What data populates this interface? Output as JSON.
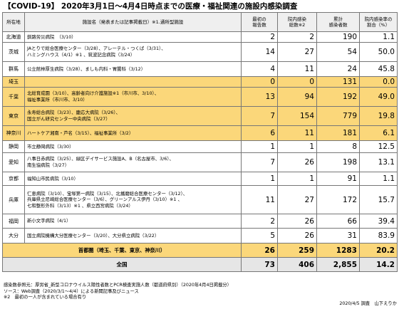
{
  "title": "【COVID-19】 2020年3月1日～4月4日時点までの医療・福祉関連の施設内感染調査",
  "headers": {
    "pref": "所在地",
    "facility": "施設名（発表または記事掲載日）※1.通所型施設",
    "first": "最初の\n報告数",
    "total": "院内感染\n総数※2",
    "cases": "累計\n感染者数",
    "ratio": "院内感染率の\n割合（%）"
  },
  "rows": [
    {
      "pref": "北海道",
      "lines": [
        "釧路労災病院　（3/10）"
      ],
      "first": "2",
      "total": "2",
      "cases": "190",
      "ratio": "1.1",
      "hl": false
    },
    {
      "pref": "茨城",
      "lines": [
        "JAとりで総合医療センター（3/28）、アレーテル・つくば（3/31）、",
        "ハミングハウス（4/1）※1 、筑波記念病院（3/24）"
      ],
      "first": "14",
      "total": "27",
      "cases": "54",
      "ratio": "50.0",
      "hl": false
    },
    {
      "pref": "群馬",
      "lines": [
        "公立館林厚生病院（3/28）、ましも内科・胃腸科（3/12）"
      ],
      "first": "4",
      "total": "11",
      "cases": "24",
      "ratio": "45.8",
      "hl": false
    },
    {
      "pref": "埼玉",
      "lines": [
        ""
      ],
      "first": "0",
      "total": "0",
      "cases": "131",
      "ratio": "0.0",
      "hl": true
    },
    {
      "pref": "千葉",
      "lines": [
        "北総育成園（3/10）、高齢者向け介護施設※1（市川市、3/10）、",
        "福祉事業所（市川市、3/10）"
      ],
      "first": "13",
      "total": "94",
      "cases": "192",
      "ratio": "49.0",
      "hl": true
    },
    {
      "pref": "東京",
      "lines": [
        "永寿総合病院（3/23）、慶応大病院（3/26）、",
        "国立がん研究センター中央病院（3/27）"
      ],
      "first": "7",
      "total": "154",
      "cases": "779",
      "ratio": "19.8",
      "hl": true
    },
    {
      "pref": "神奈川",
      "lines": [
        "ハートケア湘南・芦名（3/15）、福祉事業所（3/2）"
      ],
      "first": "6",
      "total": "11",
      "cases": "181",
      "ratio": "6.1",
      "hl": true
    },
    {
      "pref": "静岡",
      "lines": [
        "市立静岡病院（3/30）"
      ],
      "first": "1",
      "total": "1",
      "cases": "8",
      "ratio": "12.5",
      "hl": false
    },
    {
      "pref": "愛知",
      "lines": [
        "八事日赤病院（3/25）、緑区デイサービス施設A、B（名古屋市、3/6）、",
        "南生協病院（3/27）"
      ],
      "first": "7",
      "total": "26",
      "cases": "198",
      "ratio": "13.1",
      "hl": false
    },
    {
      "pref": "京都",
      "lines": [
        "福知山市民病院（3/10）"
      ],
      "first": "1",
      "total": "1",
      "cases": "91",
      "ratio": "1.1",
      "hl": false
    },
    {
      "pref": "兵庫",
      "lines": [
        "仁恵病院（3/10）、宝塚第一病院（3/15）、北播磨総合医療センター（3/12）、",
        "兵庫県立尼崎総合医療センター（3/6）、グリーンアルス伊丹（3/10）※1 、",
        "七和整形外科（3/13）※1 、県立西宮病院（3/24）"
      ],
      "first": "11",
      "total": "27",
      "cases": "172",
      "ratio": "15.7",
      "hl": false
    },
    {
      "pref": "福岡",
      "lines": [
        "新小文字病院（4/1）"
      ],
      "first": "2",
      "total": "26",
      "cases": "66",
      "ratio": "39.4",
      "hl": false
    },
    {
      "pref": "大分",
      "lines": [
        "国立病院機構大分医療センター（3/20）、大分県立病院（3/22）"
      ],
      "first": "5",
      "total": "26",
      "cases": "31",
      "ratio": "83.9",
      "hl": false
    }
  ],
  "subtotal": {
    "label": "首都圏（埼玉、千葉、東京、神奈川）",
    "first": "26",
    "total": "259",
    "cases": "1283",
    "ratio": "20.2"
  },
  "total": {
    "label": "全国",
    "first": "73",
    "total": "406",
    "cases": "2,855",
    "ratio": "14.2"
  },
  "notes": [
    "感染数参照元：厚労省_新型コロナウイルス陽性者数とPCR検査実施人数（都道府県別）（2020年4月4日掲載分）",
    "ソース：Web調査（2020/3/1〜4/4）による新聞記事及びニュース",
    "※2　最初の一人が含まれている場合有り"
  ],
  "credit": "2020/4/5 調査　山下えりか"
}
